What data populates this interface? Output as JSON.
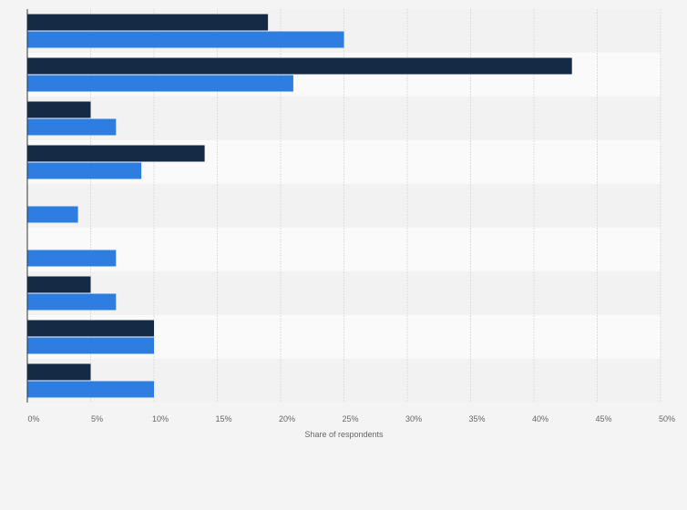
{
  "chart_data": {
    "type": "bar",
    "orientation": "horizontal",
    "title": "",
    "xlabel": "Share of respondents",
    "ylabel": "",
    "xlim": [
      0,
      50
    ],
    "x_tick_labels": [
      "0%",
      "5%",
      "10%",
      "15%",
      "20%",
      "25%",
      "30%",
      "35%",
      "40%",
      "45%",
      "50%"
    ],
    "grid": true,
    "legend": false,
    "categories": [
      "",
      "",
      "",
      "",
      "",
      "",
      "",
      "",
      ""
    ],
    "series": [
      {
        "values": [
          19,
          43,
          5,
          14,
          0,
          0,
          5,
          10,
          5
        ],
        "color": "#152a45"
      },
      {
        "values": [
          25,
          21,
          7,
          9,
          4,
          7,
          7,
          10,
          10
        ],
        "color": "#2e7de0"
      }
    ]
  },
  "colors": {
    "background": "#f4f4f4",
    "band_light": "#fafafa",
    "band_dark": "#f2f2f2",
    "grid": "#dddddd",
    "axis": "#333333"
  }
}
